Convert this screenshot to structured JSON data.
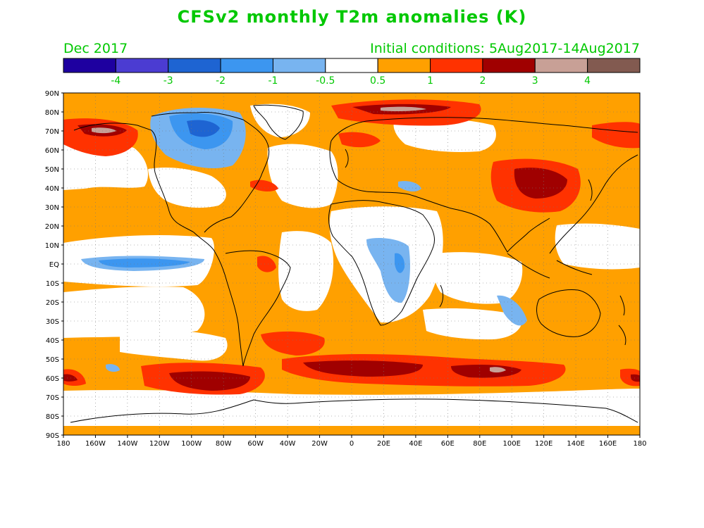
{
  "title": "CFSv2 monthly T2m anomalies (K)",
  "valid_month": "Dec 2017",
  "initial_conditions": "Initial conditions: 5Aug2017-14Aug2017",
  "colorbar": {
    "colors": [
      "#1e00a0",
      "#4b3cd2",
      "#1e64d2",
      "#3c96f0",
      "#78b4f0",
      "#ffffff",
      "#ffa000",
      "#ff3200",
      "#a00000",
      "#c8a096",
      "#825a50"
    ],
    "labels": [
      "-4",
      "-3",
      "-2",
      "-1",
      "-0.5",
      "0.5",
      "1",
      "2",
      "3",
      "4"
    ]
  },
  "map": {
    "lat_labels": [
      "90N",
      "80N",
      "70N",
      "60N",
      "50N",
      "40N",
      "30N",
      "20N",
      "10N",
      "EQ",
      "10S",
      "20S",
      "30S",
      "40S",
      "50S",
      "60S",
      "70S",
      "80S",
      "90S"
    ],
    "lon_labels": [
      "180",
      "160W",
      "140W",
      "120W",
      "100W",
      "80W",
      "60W",
      "40W",
      "20W",
      "0",
      "20E",
      "40E",
      "60E",
      "80E",
      "100E",
      "120E",
      "140E",
      "160E",
      "180"
    ],
    "colors": {
      "ocean_base": "#ffa000",
      "neutral": "#ffffff",
      "warm2": "#ff3200",
      "warm3": "#a00000",
      "warm4": "#c8a096",
      "cool1": "#78b4f0",
      "cool2": "#3c96f0",
      "cool3": "#1e64d2",
      "coast": "#000000",
      "label": "#000000",
      "text": "#00c800"
    }
  }
}
